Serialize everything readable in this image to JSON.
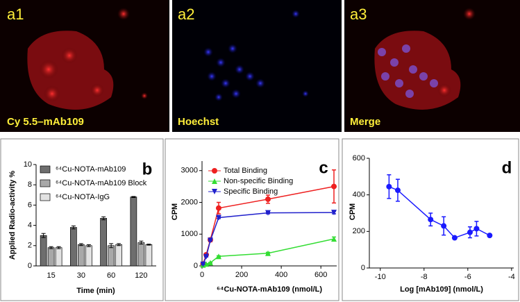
{
  "panels": [
    {
      "label": "a1",
      "caption": "Cy 5.5–mAb109"
    },
    {
      "label": "a2",
      "caption": "Hoechst"
    },
    {
      "label": "a3",
      "caption": "Merge"
    }
  ],
  "chart_data": [
    {
      "type": "bar",
      "label": "b",
      "ylabel": "Applied Radio-activity %",
      "xlabel": "Time (min)",
      "categories": [
        "15",
        "30",
        "60",
        "120"
      ],
      "series": [
        {
          "name": "⁶⁴Cu-NOTA-mAb109",
          "color": "#6e6e6e",
          "values": [
            3.0,
            3.8,
            4.7,
            6.8
          ],
          "errors": [
            0.2,
            0.15,
            0.15,
            0.05
          ]
        },
        {
          "name": "⁶⁴Cu-NOTA-mAb109 Block",
          "color": "#a8a8a8",
          "values": [
            1.8,
            2.1,
            2.0,
            2.3
          ],
          "errors": [
            0.1,
            0.1,
            0.2,
            0.15
          ]
        },
        {
          "name": "⁶⁴Cu-NOTA-IgG",
          "color": "#e2e2e2",
          "values": [
            1.8,
            2.0,
            2.1,
            2.1
          ],
          "errors": [
            0.1,
            0.1,
            0.1,
            0.05
          ]
        }
      ],
      "ylim": [
        0,
        10
      ],
      "yticks": [
        0,
        2,
        4,
        6,
        8,
        10
      ]
    },
    {
      "type": "line",
      "label": "c",
      "ylabel": "CPM",
      "xlabel": "⁶⁴Cu-NOTA-mAb109 (nmol/L)",
      "x": [
        5,
        21,
        42,
        84,
        333,
        666
      ],
      "series": [
        {
          "name": "Total Binding",
          "color": "#ee2020",
          "marker": "circle",
          "values": [
            60,
            350,
            820,
            1820,
            2100,
            2500
          ],
          "errors": [
            20,
            40,
            60,
            180,
            130,
            520
          ]
        },
        {
          "name": "Non-specific Binding",
          "color": "#33dd33",
          "marker": "triangle-up",
          "values": [
            30,
            60,
            100,
            300,
            400,
            850
          ],
          "errors": [
            5,
            5,
            10,
            20,
            30,
            60
          ]
        },
        {
          "name": "Specific Binding",
          "color": "#2020cc",
          "marker": "triangle-down",
          "values": [
            50,
            290,
            800,
            1520,
            1670,
            1680
          ],
          "errors": [
            5,
            10,
            20,
            30,
            30,
            40
          ]
        }
      ],
      "xlim": [
        0,
        680
      ],
      "xticks": [
        0,
        200,
        400,
        600
      ],
      "ylim": [
        0,
        3300
      ],
      "yticks": [
        0,
        1000,
        2000,
        3000
      ]
    },
    {
      "type": "line",
      "label": "d",
      "ylabel": "CPM",
      "xlabel": "Log [mAb109] (nmol/L)",
      "x": [
        -9.6,
        -9.2,
        -7.7,
        -7.1,
        -6.6,
        -5.9,
        -5.6,
        -5
      ],
      "series": [
        {
          "color": "#1a1aff",
          "marker": "circle",
          "values": [
            445,
            425,
            265,
            230,
            165,
            195,
            215,
            178
          ],
          "errors": [
            65,
            60,
            35,
            50,
            null,
            30,
            40,
            null
          ]
        }
      ],
      "xlim": [
        -10.5,
        -3.9
      ],
      "xticks": [
        -10,
        -8,
        -6,
        -4
      ],
      "ylim": [
        0,
        600
      ],
      "yticks": [
        0,
        200,
        400,
        600
      ]
    }
  ]
}
